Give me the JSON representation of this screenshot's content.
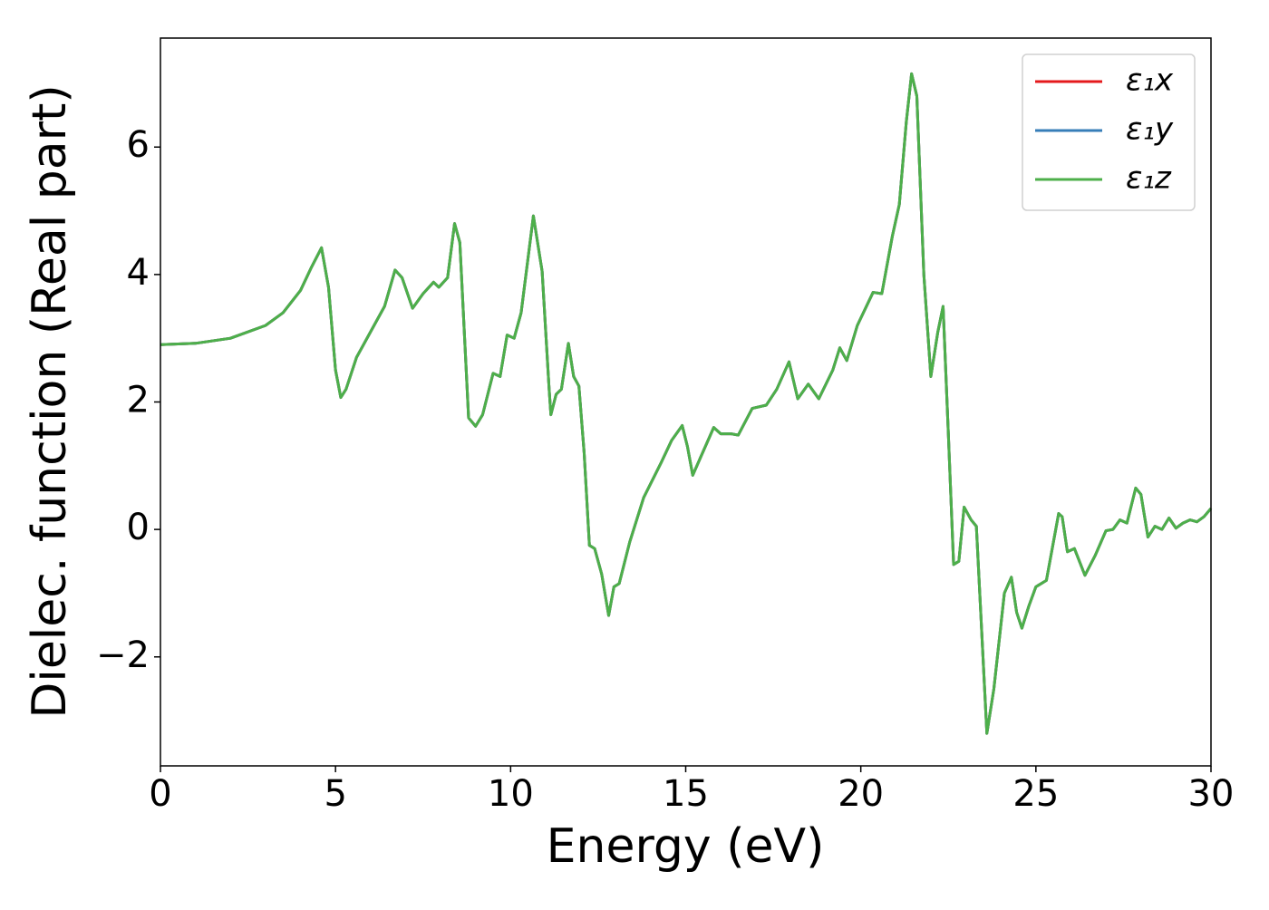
{
  "chart_data": {
    "type": "line",
    "xlabel": "Energy (eV)",
    "ylabel": "Dielec. function (Real part)",
    "x": [
      0,
      1,
      2,
      3,
      3.5,
      4,
      4.3,
      4.6,
      4.8,
      5.0,
      5.15,
      5.3,
      5.6,
      6.0,
      6.4,
      6.7,
      6.9,
      7.2,
      7.5,
      7.8,
      7.95,
      8.2,
      8.4,
      8.55,
      8.8,
      9.0,
      9.2,
      9.5,
      9.7,
      9.9,
      10.1,
      10.3,
      10.65,
      10.9,
      11.1,
      11.15,
      11.3,
      11.45,
      11.65,
      11.8,
      11.95,
      12.1,
      12.25,
      12.4,
      12.6,
      12.8,
      12.95,
      13.1,
      13.4,
      13.8,
      14.3,
      14.6,
      14.9,
      15.05,
      15.2,
      15.4,
      15.8,
      16.0,
      16.3,
      16.5,
      16.9,
      17.3,
      17.6,
      17.95,
      18.2,
      18.5,
      18.8,
      19.2,
      19.4,
      19.6,
      19.9,
      20.35,
      20.6,
      20.9,
      21.1,
      21.3,
      21.45,
      21.6,
      21.8,
      22.0,
      22.2,
      22.35,
      22.5,
      22.65,
      22.8,
      22.95,
      23.15,
      23.3,
      23.6,
      23.8,
      24.1,
      24.3,
      24.45,
      24.6,
      24.8,
      25.0,
      25.3,
      25.65,
      25.75,
      25.9,
      26.1,
      26.4,
      26.7,
      27.0,
      27.2,
      27.4,
      27.6,
      27.85,
      28.0,
      28.2,
      28.4,
      28.6,
      28.8,
      29.0,
      29.2,
      29.4,
      29.6,
      29.8,
      30.0
    ],
    "series": [
      {
        "name": "ε₁x",
        "color": "#e41a1c",
        "values": [
          2.9,
          2.92,
          3.0,
          3.2,
          3.4,
          3.75,
          4.1,
          4.42,
          3.8,
          2.5,
          2.07,
          2.2,
          2.7,
          3.1,
          3.5,
          4.07,
          3.95,
          3.47,
          3.7,
          3.88,
          3.8,
          3.95,
          4.8,
          4.5,
          1.75,
          1.62,
          1.8,
          2.45,
          2.4,
          3.05,
          3.0,
          3.4,
          4.92,
          4.05,
          2.2,
          1.8,
          2.12,
          2.2,
          2.92,
          2.4,
          2.25,
          1.2,
          -0.25,
          -0.3,
          -0.7,
          -1.35,
          -0.9,
          -0.85,
          -0.2,
          0.5,
          1.05,
          1.4,
          1.63,
          1.3,
          0.85,
          1.1,
          1.6,
          1.5,
          1.5,
          1.48,
          1.9,
          1.95,
          2.2,
          2.63,
          2.05,
          2.28,
          2.05,
          2.5,
          2.85,
          2.65,
          3.2,
          3.72,
          3.7,
          4.6,
          5.1,
          6.4,
          7.15,
          6.8,
          4.0,
          2.4,
          3.1,
          3.5,
          1.5,
          -0.55,
          -0.5,
          0.35,
          0.15,
          0.05,
          -3.2,
          -2.5,
          -1.0,
          -0.75,
          -1.3,
          -1.55,
          -1.2,
          -0.9,
          -0.8,
          0.25,
          0.2,
          -0.35,
          -0.3,
          -0.72,
          -0.4,
          -0.02,
          0.0,
          0.15,
          0.1,
          0.65,
          0.55,
          -0.12,
          0.05,
          0.0,
          0.18,
          0.02,
          0.1,
          0.15,
          0.12,
          0.2,
          0.33
        ]
      },
      {
        "name": "ε₁y",
        "color": "#377eb8",
        "values": [
          2.9,
          2.92,
          3.0,
          3.2,
          3.4,
          3.75,
          4.1,
          4.42,
          3.8,
          2.5,
          2.07,
          2.2,
          2.7,
          3.1,
          3.5,
          4.07,
          3.95,
          3.47,
          3.7,
          3.88,
          3.8,
          3.95,
          4.8,
          4.5,
          1.75,
          1.62,
          1.8,
          2.45,
          2.4,
          3.05,
          3.0,
          3.4,
          4.92,
          4.05,
          2.2,
          1.8,
          2.12,
          2.2,
          2.92,
          2.4,
          2.25,
          1.2,
          -0.25,
          -0.3,
          -0.7,
          -1.35,
          -0.9,
          -0.85,
          -0.2,
          0.5,
          1.05,
          1.4,
          1.63,
          1.3,
          0.85,
          1.1,
          1.6,
          1.5,
          1.5,
          1.48,
          1.9,
          1.95,
          2.2,
          2.63,
          2.05,
          2.28,
          2.05,
          2.5,
          2.85,
          2.65,
          3.2,
          3.72,
          3.7,
          4.6,
          5.1,
          6.4,
          7.15,
          6.8,
          4.0,
          2.4,
          3.1,
          3.5,
          1.5,
          -0.55,
          -0.5,
          0.35,
          0.15,
          0.05,
          -3.2,
          -2.5,
          -1.0,
          -0.75,
          -1.3,
          -1.55,
          -1.2,
          -0.9,
          -0.8,
          0.25,
          0.2,
          -0.35,
          -0.3,
          -0.72,
          -0.4,
          -0.02,
          0.0,
          0.15,
          0.1,
          0.65,
          0.55,
          -0.12,
          0.05,
          0.0,
          0.18,
          0.02,
          0.1,
          0.15,
          0.12,
          0.2,
          0.33
        ]
      },
      {
        "name": "ε₁z",
        "color": "#4daf4a",
        "values": [
          2.9,
          2.92,
          3.0,
          3.2,
          3.4,
          3.75,
          4.1,
          4.42,
          3.8,
          2.5,
          2.07,
          2.2,
          2.7,
          3.1,
          3.5,
          4.07,
          3.95,
          3.47,
          3.7,
          3.88,
          3.8,
          3.95,
          4.8,
          4.5,
          1.75,
          1.62,
          1.8,
          2.45,
          2.4,
          3.05,
          3.0,
          3.4,
          4.92,
          4.05,
          2.2,
          1.8,
          2.12,
          2.2,
          2.92,
          2.4,
          2.25,
          1.2,
          -0.25,
          -0.3,
          -0.7,
          -1.35,
          -0.9,
          -0.85,
          -0.2,
          0.5,
          1.05,
          1.4,
          1.63,
          1.3,
          0.85,
          1.1,
          1.6,
          1.5,
          1.5,
          1.48,
          1.9,
          1.95,
          2.2,
          2.63,
          2.05,
          2.28,
          2.05,
          2.5,
          2.85,
          2.65,
          3.2,
          3.72,
          3.7,
          4.6,
          5.1,
          6.4,
          7.15,
          6.8,
          4.0,
          2.4,
          3.1,
          3.5,
          1.5,
          -0.55,
          -0.5,
          0.35,
          0.15,
          0.05,
          -3.2,
          -2.5,
          -1.0,
          -0.75,
          -1.3,
          -1.55,
          -1.2,
          -0.9,
          -0.8,
          0.25,
          0.2,
          -0.35,
          -0.3,
          -0.72,
          -0.4,
          -0.02,
          0.0,
          0.15,
          0.1,
          0.65,
          0.55,
          -0.12,
          0.05,
          0.0,
          0.18,
          0.02,
          0.1,
          0.15,
          0.12,
          0.2,
          0.33
        ]
      }
    ],
    "xlim": [
      0,
      30
    ],
    "xticks": [
      0,
      5,
      10,
      15,
      20,
      25,
      30
    ],
    "ylim": [
      -3.71,
      7.71
    ],
    "yticks": [
      {
        "value": -2,
        "label": "−2"
      },
      0,
      2,
      4,
      6
    ],
    "grid": false,
    "legend": "upper right"
  }
}
